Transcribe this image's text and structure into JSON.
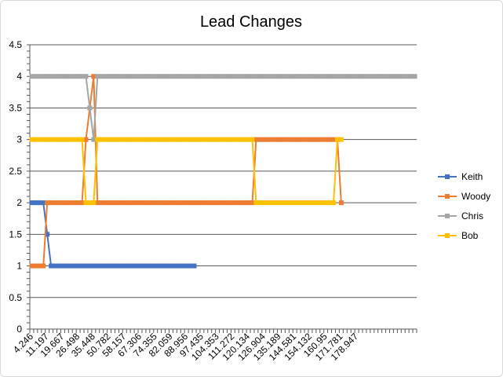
{
  "chart_data": {
    "type": "line",
    "title": "Lead Changes",
    "xlabel": "",
    "ylabel": "",
    "ylim": [
      0,
      4.5
    ],
    "yticks": [
      "0",
      "0.5",
      "1",
      "1.5",
      "2",
      "2.5",
      "3",
      "3.5",
      "4",
      "4.5"
    ],
    "y_tick_values": [
      0,
      0.5,
      1,
      1.5,
      2,
      2.5,
      3,
      3.5,
      4,
      4.5
    ],
    "x_tick_labels": [
      "4.246",
      "11.197",
      "19.667",
      "26.498",
      "35.448",
      "50.782",
      "58.157",
      "67.306",
      "74.355",
      "82.059",
      "88.956",
      "97.435",
      "104.353",
      "111.272",
      "120.134",
      "126.904",
      "135.189",
      "144.581",
      "154.132",
      "160.95",
      "171.781",
      "178.947"
    ],
    "grid": true,
    "legend_position": "right",
    "series": [
      {
        "name": "Keith",
        "color": "#4472c4",
        "values": [
          2,
          2,
          2,
          2,
          1.5,
          1,
          1,
          1,
          1,
          1,
          1,
          1,
          1,
          1,
          1,
          1,
          1,
          1,
          1,
          1,
          1,
          1,
          1,
          1,
          1,
          1,
          1,
          1,
          1,
          1,
          1,
          1,
          1,
          1,
          1,
          1,
          1,
          1,
          1,
          1,
          1,
          1,
          1
        ]
      },
      {
        "name": "Woody",
        "color": "#ed7d31",
        "values": [
          1,
          1,
          1,
          1,
          2,
          2,
          2,
          2,
          2,
          2,
          2,
          2,
          2,
          2,
          3,
          3.5,
          4,
          2,
          2,
          2,
          2,
          2,
          2,
          2,
          2,
          2,
          2,
          2,
          2,
          2,
          2,
          2,
          2,
          2,
          2,
          2,
          2,
          2,
          2,
          2,
          2,
          2,
          2,
          2,
          2,
          2,
          2,
          2,
          2,
          2,
          2,
          2,
          2,
          2,
          2,
          2,
          2,
          2,
          3,
          3,
          3,
          3,
          3,
          3,
          3,
          3,
          3,
          3,
          3,
          3,
          3,
          3,
          3,
          3,
          3,
          3,
          3,
          3,
          3,
          3,
          2
        ]
      },
      {
        "name": "Chris",
        "color": "#a5a5a5",
        "values": [
          4,
          4,
          4,
          4,
          4,
          4,
          4,
          4,
          4,
          4,
          4,
          4,
          4,
          4,
          4,
          3.5,
          3,
          4,
          4,
          4,
          4,
          4,
          4,
          4,
          4,
          4,
          4,
          4,
          4,
          4,
          4,
          4,
          4,
          4,
          4,
          4,
          4,
          4,
          4,
          4,
          4,
          4,
          4,
          4,
          4,
          4,
          4,
          4,
          4,
          4,
          4,
          4,
          4,
          4,
          4,
          4,
          4,
          4,
          4,
          4,
          4,
          4,
          4,
          4,
          4,
          4,
          4,
          4,
          4,
          4,
          4,
          4,
          4,
          4,
          4,
          4,
          4,
          4,
          4,
          4,
          4,
          4,
          4,
          4,
          4,
          4,
          4,
          4,
          4,
          4,
          4,
          4,
          4,
          4,
          4,
          4,
          4,
          4,
          4,
          4
        ]
      },
      {
        "name": "Bob",
        "color": "#ffc000",
        "values": [
          3,
          3,
          3,
          3,
          3,
          3,
          3,
          3,
          3,
          3,
          3,
          3,
          3,
          3,
          2,
          2,
          2,
          3,
          3,
          3,
          3,
          3,
          3,
          3,
          3,
          3,
          3,
          3,
          3,
          3,
          3,
          3,
          3,
          3,
          3,
          3,
          3,
          3,
          3,
          3,
          3,
          3,
          3,
          3,
          3,
          3,
          3,
          3,
          3,
          3,
          3,
          3,
          3,
          3,
          3,
          3,
          3,
          3,
          2,
          2,
          2,
          2,
          2,
          2,
          2,
          2,
          2,
          2,
          2,
          2,
          2,
          2,
          2,
          2,
          2,
          2,
          2,
          2,
          2,
          3,
          3
        ]
      }
    ]
  }
}
